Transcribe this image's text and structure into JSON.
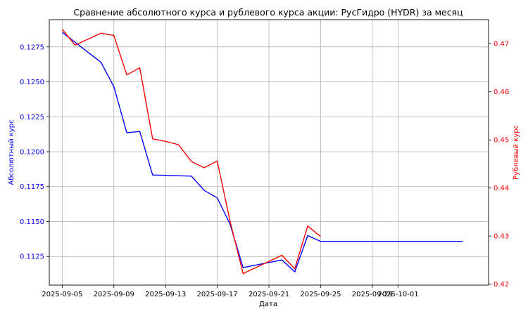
{
  "chart_data": {
    "type": "line",
    "title": "Сравнение абсолютного курса и рублевого курса акции: РусГидро (HYDR) за месяц",
    "xlabel": "Дата",
    "ylabel_left": "Абсолютный курс",
    "ylabel_right": "Рублевый курс",
    "grid": true,
    "colors": {
      "left": "#0000ff",
      "right": "#ff0000"
    },
    "x_ticks": [
      "2025-09-05",
      "2025-09-09",
      "2025-09-13",
      "2025-09-17",
      "2025-09-21",
      "2025-09-25",
      "2025-09-29",
      "2025-10-01"
    ],
    "y_left_ticks": [
      "0.1125",
      "0.1150",
      "0.1175",
      "0.1200",
      "0.1225",
      "0.1250",
      "0.1275"
    ],
    "y_right_ticks": [
      "0.42",
      "0.43",
      "0.44",
      "0.45",
      "0.46",
      "0.47"
    ],
    "xlim": [
      "2025-09-04",
      "2025-10-08"
    ],
    "ylim_left": [
      0.11045,
      0.12945
    ],
    "ylim_right": [
      0.4198,
      0.475
    ],
    "series": [
      {
        "axis": "left",
        "dates": [
          "2025-09-05",
          "2025-09-08",
          "2025-09-09",
          "2025-09-10",
          "2025-09-11",
          "2025-09-12",
          "2025-09-15",
          "2025-09-16",
          "2025-09-17",
          "2025-09-18",
          "2025-09-19",
          "2025-09-22",
          "2025-09-23",
          "2025-09-24",
          "2025-09-25",
          "2025-10-06"
        ],
        "values": [
          0.12855,
          0.1264,
          0.12465,
          0.12135,
          0.12145,
          0.11833,
          0.11825,
          0.11722,
          0.1167,
          0.1148,
          0.1117,
          0.11225,
          0.1114,
          0.114,
          0.11358,
          0.11358
        ]
      },
      {
        "axis": "right",
        "dates": [
          "2025-09-05",
          "2025-09-06",
          "2025-09-08",
          "2025-09-09",
          "2025-09-10",
          "2025-09-11",
          "2025-09-12",
          "2025-09-13",
          "2025-09-14",
          "2025-09-15",
          "2025-09-16",
          "2025-09-17",
          "2025-09-18",
          "2025-09-19",
          "2025-09-22",
          "2025-09-23",
          "2025-09-24",
          "2025-09-25"
        ],
        "values": [
          0.473,
          0.4697,
          0.4722,
          0.4717,
          0.4635,
          0.465,
          0.4502,
          0.4497,
          0.449,
          0.4455,
          0.4442,
          0.4456,
          0.433,
          0.4222,
          0.426,
          0.4232,
          0.4321,
          0.4299
        ]
      }
    ]
  }
}
